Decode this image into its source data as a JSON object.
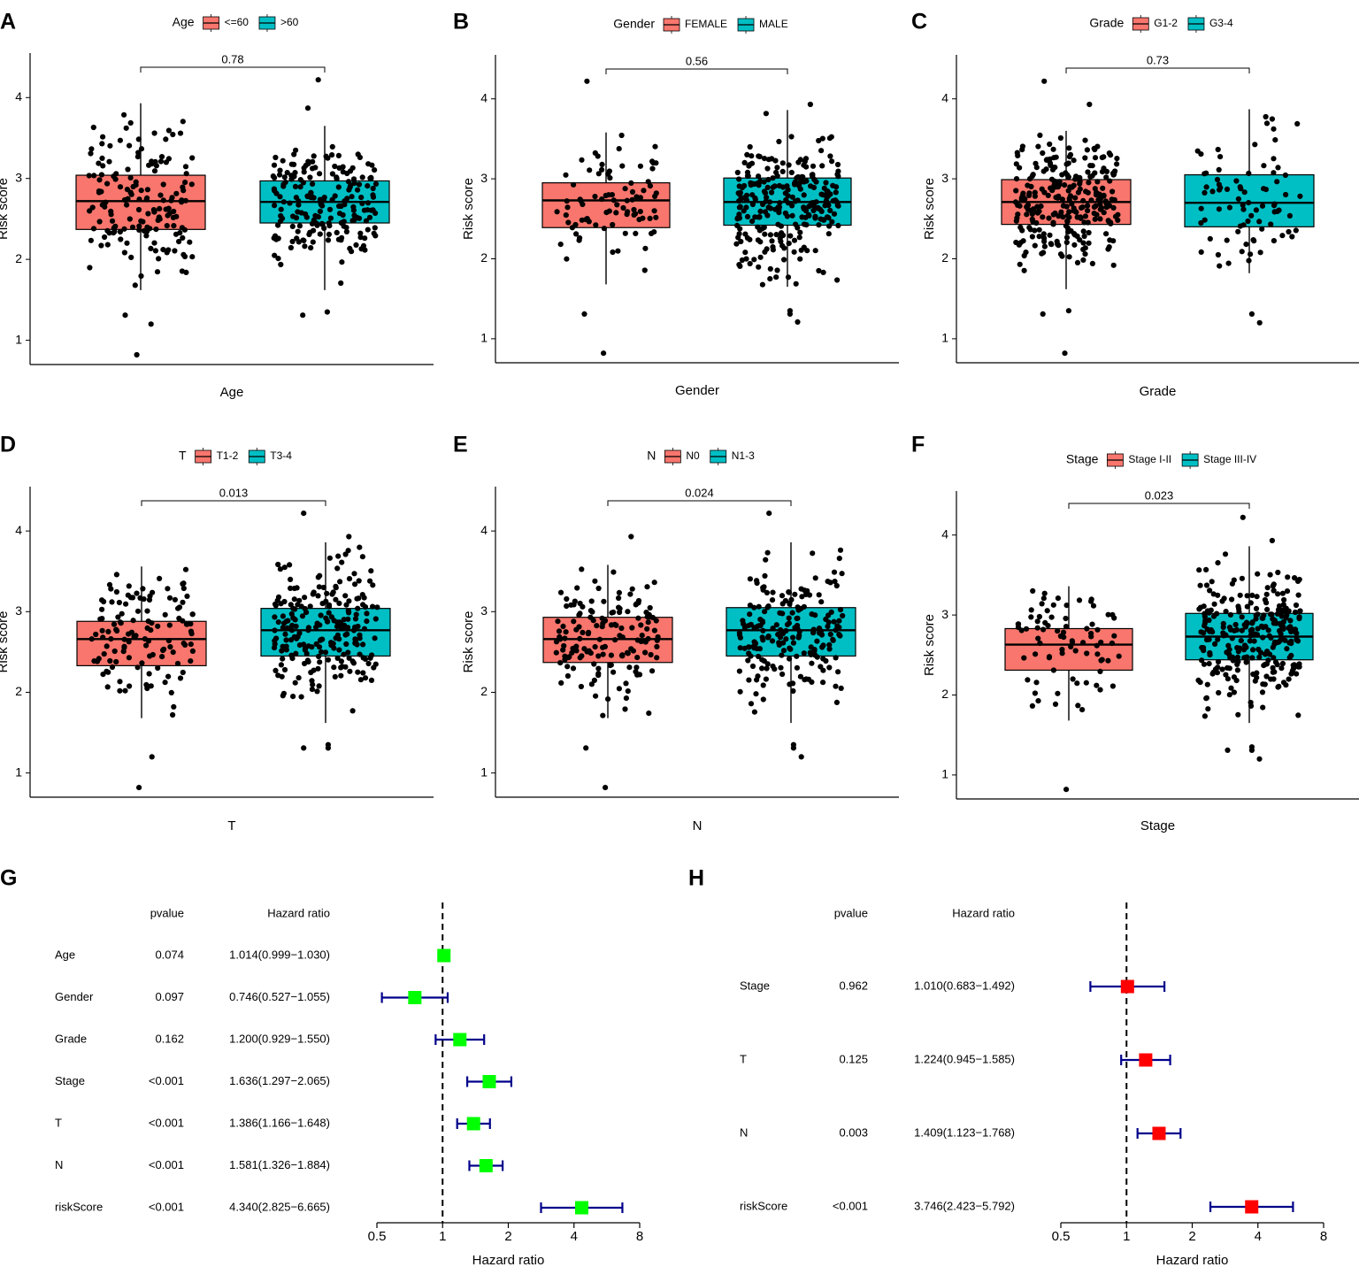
{
  "colors": {
    "low": "#F8766D",
    "high": "#00BFC4",
    "point": "#000000",
    "forest_g": "#00FF00",
    "forest_h": "#FF0000",
    "ci": "#00008B"
  },
  "chart_data": [
    {
      "type": "box",
      "panel": "A",
      "legend_title": "Age",
      "xlabel": "Age",
      "ylabel": "Risk score",
      "ylim": [
        0.7,
        4.55
      ],
      "yticks": [
        "1",
        "2",
        "3",
        "4"
      ],
      "p_value": "0.78",
      "categories": [
        "<=60",
        ">60"
      ],
      "n": [
        160,
        200
      ],
      "stats": [
        {
          "min": 1.62,
          "q1": 2.37,
          "median": 2.72,
          "q3": 3.04,
          "max": 3.93
        },
        {
          "min": 1.62,
          "q1": 2.45,
          "median": 2.71,
          "q3": 2.97,
          "max": 3.65
        }
      ],
      "outliers": [
        [
          [
            0.82,
            -0.03
          ],
          [
            1.31,
            -0.12
          ],
          [
            1.2,
            0.08
          ]
        ],
        [
          [
            1.31,
            -0.17
          ],
          [
            1.35,
            0.02
          ],
          [
            3.87,
            -0.13
          ],
          [
            4.22,
            -0.05
          ]
        ]
      ]
    },
    {
      "type": "box",
      "panel": "B",
      "legend_title": "Gender",
      "xlabel": "Gender",
      "ylabel": "Risk score",
      "ylim": [
        0.7,
        4.55
      ],
      "yticks": [
        "1",
        "2",
        "3",
        "4"
      ],
      "p_value": "0.56",
      "categories": [
        "FEMALE",
        "MALE"
      ],
      "n": [
        85,
        270
      ],
      "stats": [
        {
          "min": 1.68,
          "q1": 2.39,
          "median": 2.73,
          "q3": 2.95,
          "max": 3.58
        },
        {
          "min": 1.65,
          "q1": 2.42,
          "median": 2.71,
          "q3": 3.01,
          "max": 3.86
        }
      ],
      "outliers": [
        [
          [
            0.82,
            -0.02
          ],
          [
            1.31,
            -0.17
          ],
          [
            4.22,
            -0.15
          ]
        ],
        [
          [
            1.21,
            0.08
          ],
          [
            1.31,
            0.02
          ],
          [
            1.35,
            0.02
          ],
          [
            3.93,
            0.18
          ]
        ]
      ]
    },
    {
      "type": "box",
      "panel": "C",
      "legend_title": "Grade",
      "xlabel": "Grade",
      "ylabel": "Risk score",
      "ylim": [
        0.7,
        4.55
      ],
      "yticks": [
        "1",
        "2",
        "3",
        "4"
      ],
      "p_value": "0.73",
      "categories": [
        "G1-2",
        "G3-4"
      ],
      "n": [
        270,
        80
      ],
      "stats": [
        {
          "min": 1.62,
          "q1": 2.43,
          "median": 2.71,
          "q3": 2.99,
          "max": 3.6
        },
        {
          "min": 1.82,
          "q1": 2.4,
          "median": 2.7,
          "q3": 3.05,
          "max": 3.87
        }
      ],
      "outliers": [
        [
          [
            0.82,
            -0.01
          ],
          [
            1.31,
            -0.18
          ],
          [
            1.35,
            0.02
          ],
          [
            4.22,
            -0.17
          ],
          [
            3.93,
            0.18
          ]
        ],
        [
          [
            1.31,
            0.02
          ],
          [
            1.2,
            0.08
          ]
        ]
      ]
    },
    {
      "type": "box",
      "panel": "D",
      "legend_title": "T",
      "xlabel": "T",
      "ylabel": "Risk score",
      "ylim": [
        0.7,
        4.55
      ],
      "yticks": [
        "1",
        "2",
        "3",
        "4"
      ],
      "p_value": "0.013",
      "categories": [
        "T1-2",
        "T3-4"
      ],
      "n": [
        125,
        225
      ],
      "stats": [
        {
          "min": 1.68,
          "q1": 2.33,
          "median": 2.66,
          "q3": 2.88,
          "max": 3.56
        },
        {
          "min": 1.62,
          "q1": 2.45,
          "median": 2.77,
          "q3": 3.04,
          "max": 3.86
        }
      ],
      "outliers": [
        [
          [
            0.82,
            -0.02
          ],
          [
            1.2,
            0.08
          ]
        ],
        [
          [
            1.31,
            -0.17
          ],
          [
            1.31,
            0.02
          ],
          [
            1.35,
            0.02
          ],
          [
            4.22,
            -0.17
          ],
          [
            3.93,
            0.18
          ]
        ]
      ]
    },
    {
      "type": "box",
      "panel": "E",
      "legend_title": "N",
      "xlabel": "N",
      "ylabel": "Risk score",
      "ylim": [
        0.7,
        4.55
      ],
      "yticks": [
        "1",
        "2",
        "3",
        "4"
      ],
      "p_value": "0.024",
      "categories": [
        "N0",
        "N1-3"
      ],
      "n": [
        150,
        200
      ],
      "stats": [
        {
          "min": 1.68,
          "q1": 2.37,
          "median": 2.66,
          "q3": 2.93,
          "max": 3.58
        },
        {
          "min": 1.62,
          "q1": 2.45,
          "median": 2.77,
          "q3": 3.05,
          "max": 3.86
        }
      ],
      "outliers": [
        [
          [
            0.82,
            -0.02
          ],
          [
            1.31,
            -0.17
          ],
          [
            3.93,
            0.18
          ]
        ],
        [
          [
            1.2,
            0.08
          ],
          [
            1.31,
            0.02
          ],
          [
            1.35,
            0.02
          ],
          [
            4.22,
            -0.17
          ]
        ]
      ]
    },
    {
      "type": "box",
      "panel": "F",
      "legend_title": "Stage",
      "xlabel": "Stage",
      "ylabel": "Risk score",
      "ylim": [
        0.7,
        4.55
      ],
      "yticks": [
        "1",
        "2",
        "3",
        "4"
      ],
      "p_value": "0.023",
      "categories": [
        "Stage I-II",
        "Stage III-IV"
      ],
      "n": [
        80,
        280
      ],
      "stats": [
        {
          "min": 1.68,
          "q1": 2.31,
          "median": 2.63,
          "q3": 2.83,
          "max": 3.36
        },
        {
          "min": 1.65,
          "q1": 2.44,
          "median": 2.73,
          "q3": 3.02,
          "max": 3.86
        }
      ],
      "outliers": [
        [
          [
            0.82,
            -0.02
          ]
        ],
        [
          [
            1.31,
            -0.17
          ],
          [
            1.35,
            0.02
          ],
          [
            1.31,
            0.02
          ],
          [
            1.2,
            0.08
          ],
          [
            4.22,
            -0.05
          ],
          [
            3.93,
            0.18
          ]
        ]
      ]
    },
    {
      "type": "forest",
      "panel": "G",
      "header_p": "pvalue",
      "header_hr": "Hazard ratio",
      "xlabel": "Hazard ratio",
      "xticks": [
        "0.5",
        "1",
        "2",
        "4",
        "8"
      ],
      "rows": [
        {
          "label": "Age",
          "pvalue": "0.074",
          "hr_text": "1.014(0.999−1.030)",
          "hr": 1.014,
          "lo": 0.999,
          "hi": 1.03
        },
        {
          "label": "Gender",
          "pvalue": "0.097",
          "hr_text": "0.746(0.527−1.055)",
          "hr": 0.746,
          "lo": 0.527,
          "hi": 1.055
        },
        {
          "label": "Grade",
          "pvalue": "0.162",
          "hr_text": "1.200(0.929−1.550)",
          "hr": 1.2,
          "lo": 0.929,
          "hi": 1.55
        },
        {
          "label": "Stage",
          "pvalue": "<0.001",
          "hr_text": "1.636(1.297−2.065)",
          "hr": 1.636,
          "lo": 1.297,
          "hi": 2.065
        },
        {
          "label": "T",
          "pvalue": "<0.001",
          "hr_text": "1.386(1.166−1.648)",
          "hr": 1.386,
          "lo": 1.166,
          "hi": 1.648
        },
        {
          "label": "N",
          "pvalue": "<0.001",
          "hr_text": "1.581(1.326−1.884)",
          "hr": 1.581,
          "lo": 1.326,
          "hi": 1.884
        },
        {
          "label": "riskScore",
          "pvalue": "<0.001",
          "hr_text": "4.340(2.825−6.665)",
          "hr": 4.34,
          "lo": 2.825,
          "hi": 6.665
        }
      ]
    },
    {
      "type": "forest",
      "panel": "H",
      "header_p": "pvalue",
      "header_hr": "Hazard ratio",
      "xlabel": "Hazard ratio",
      "xticks": [
        "0.5",
        "1",
        "2",
        "4",
        "8"
      ],
      "rows": [
        {
          "label": "Stage",
          "pvalue": "0.962",
          "hr_text": "1.010(0.683−1.492)",
          "hr": 1.01,
          "lo": 0.683,
          "hi": 1.492
        },
        {
          "label": "T",
          "pvalue": "0.125",
          "hr_text": "1.224(0.945−1.585)",
          "hr": 1.224,
          "lo": 0.945,
          "hi": 1.585
        },
        {
          "label": "N",
          "pvalue": "0.003",
          "hr_text": "1.409(1.123−1.768)",
          "hr": 1.409,
          "lo": 1.123,
          "hi": 1.768
        },
        {
          "label": "riskScore",
          "pvalue": "<0.001",
          "hr_text": "3.746(2.423−5.792)",
          "hr": 3.746,
          "lo": 2.423,
          "hi": 5.792
        }
      ]
    }
  ]
}
